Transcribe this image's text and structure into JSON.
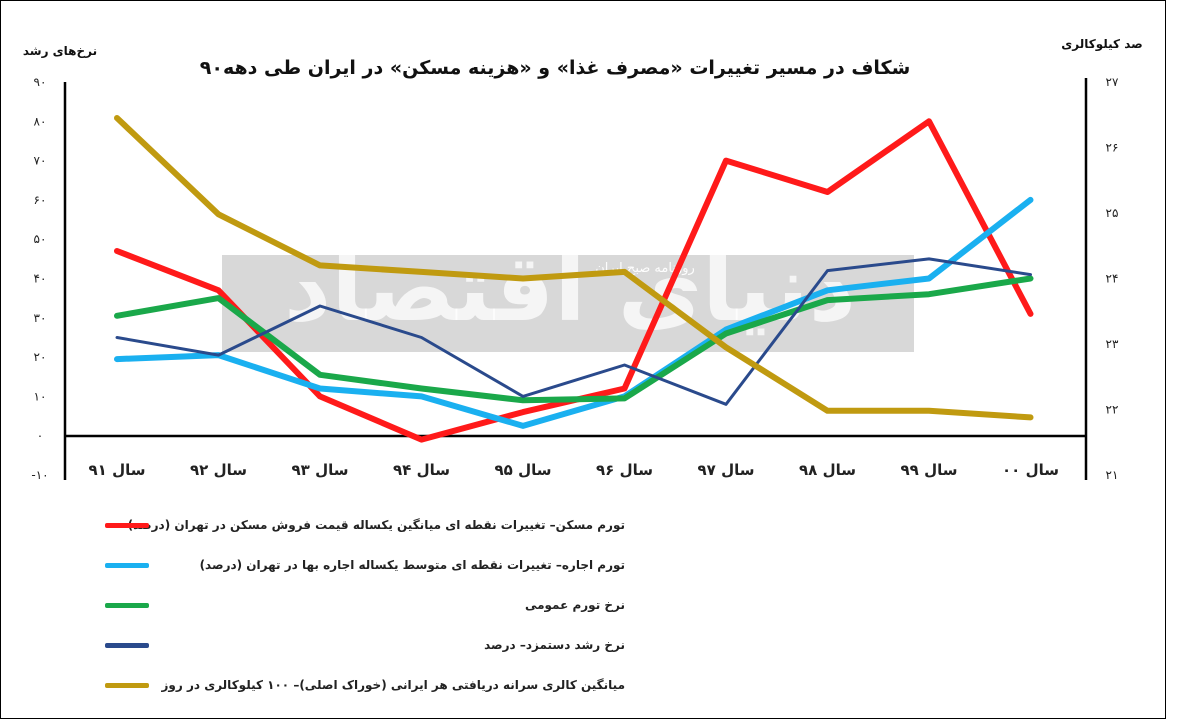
{
  "chart_data": {
    "type": "line",
    "title": "شکاف در مسیر تغییرات «مصرف غذا» و «هزینه مسکن» در ایران طی دهه۹۰",
    "ylabel_left": "نرخ‌های رشد",
    "ylabel_right": "صد کیلوکالری",
    "watermark": "دنیای اقتصاد",
    "watermark_sub": "روزنامه صبح ایران",
    "categories": [
      "سال ۹۱",
      "سال ۹۲",
      "سال ۹۳",
      "سال ۹۴",
      "سال ۹۵",
      "سال ۹۶",
      "سال ۹۷",
      "سال ۹۸",
      "سال ۹۹",
      "سال ۰۰"
    ],
    "y_left": {
      "min": -10,
      "max": 90,
      "ticks": [
        "۹۰",
        "۸۰",
        "۷۰",
        "۶۰",
        "۵۰",
        "۴۰",
        "۳۰",
        "۲۰",
        "۱۰",
        "۰",
        "-۱۰"
      ]
    },
    "y_right": {
      "min": 21,
      "max": 27,
      "ticks": [
        "۲۷",
        "۲۶",
        "۲۵",
        "۲۴",
        "۲۳",
        "۲۲",
        "۲۱"
      ]
    },
    "series": [
      {
        "name": "تورم مسکن– تغییرات نقطه ای میانگین یکساله قیمت فروش مسکن در تهران (درصد)",
        "color": "#ff1a1a",
        "axis": "left",
        "values": [
          47,
          37,
          10,
          -1,
          6,
          12,
          70,
          62,
          80,
          31
        ]
      },
      {
        "name": "تورم اجاره– تغییرات نقطه ای متوسط یکساله اجاره بها در تهران (درصد)",
        "color": "#1ab0f0",
        "axis": "left",
        "values": [
          19.5,
          20.5,
          12,
          10,
          2.5,
          10,
          27,
          37,
          40,
          60
        ]
      },
      {
        "name": "نرخ تورم عمومی",
        "color": "#1aa84a",
        "axis": "left",
        "values": [
          30.5,
          35,
          15.5,
          12,
          9,
          9.5,
          26,
          34.5,
          36,
          40
        ]
      },
      {
        "name": "نرخ رشد دستمزد– درصد",
        "color": "#2a4a8c",
        "axis": "left",
        "values": [
          25,
          20.5,
          33,
          25,
          10,
          18,
          8,
          42,
          45,
          41
        ]
      },
      {
        "name": "میانگین کالری سرانه دریافتی هر ایرانی (خوراک اصلی)– ۱۰۰ کیلوکالری در روز",
        "color": "#c09a10",
        "axis": "right",
        "values": [
          26.45,
          24.98,
          24.2,
          24.1,
          24.0,
          24.1,
          22.95,
          21.98,
          21.98,
          21.88
        ]
      }
    ]
  }
}
